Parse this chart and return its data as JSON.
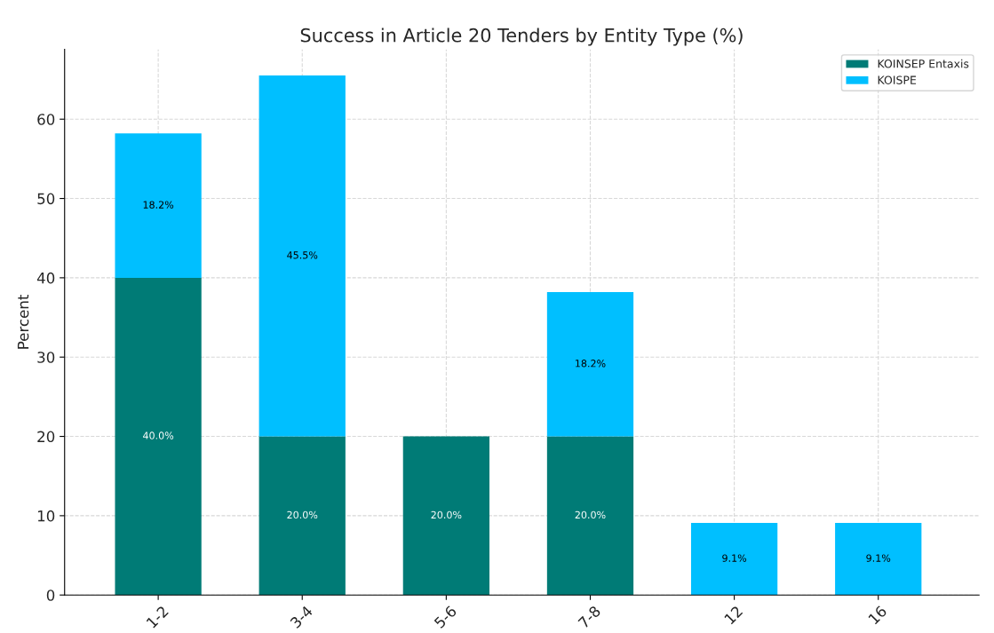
{
  "chart_data": {
    "type": "bar",
    "title": "Success in Article 20 Tenders by Entity Type (%)",
    "ylabel": "Percent",
    "categories": [
      "1-2",
      "3-4",
      "5-6",
      "7-8",
      "12",
      "16"
    ],
    "stacked": true,
    "series": [
      {
        "name": "KOINSEP Entaxis",
        "color": "#007b76",
        "values": [
          40.0,
          20.0,
          20.0,
          20.0,
          null,
          null
        ],
        "value_labels": [
          "40.0%",
          "20.0%",
          "20.0%",
          "20.0%",
          null,
          null
        ]
      },
      {
        "name": "KOISPE",
        "color": "#00bfff",
        "values": [
          18.2,
          45.5,
          null,
          18.2,
          9.1,
          9.1
        ],
        "value_labels": [
          "18.2%",
          "45.5%",
          null,
          "18.2%",
          "9.1%",
          "9.1%"
        ]
      }
    ],
    "ylim": [
      0,
      68.8
    ],
    "yticks": [
      0,
      10,
      20,
      30,
      40,
      50,
      60
    ],
    "grid": true,
    "legend": "top right"
  }
}
